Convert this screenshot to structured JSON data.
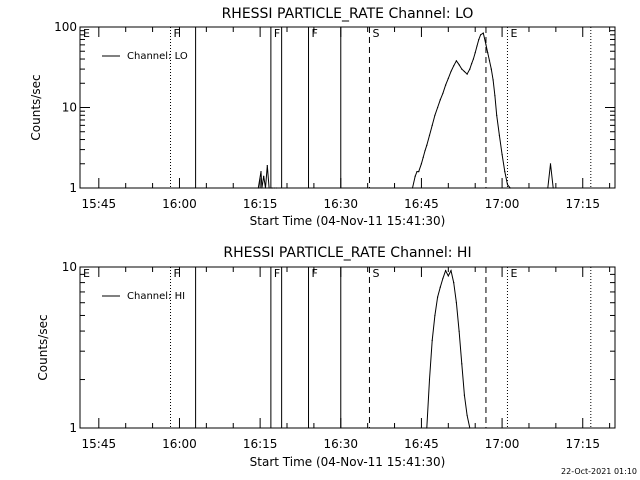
{
  "timestamp": "22-Oct-2021 01:10",
  "chart_data": [
    {
      "type": "line",
      "title": "RHESSI PARTICLE_RATE Channel: LO",
      "xlabel": "Start Time (04-Nov-11 15:41:30)",
      "ylabel": "Counts/sec",
      "yscale": "log",
      "ylim": [
        1,
        100
      ],
      "yticks": [
        {
          "value": 1,
          "label": "1"
        },
        {
          "value": 10,
          "label": "10"
        },
        {
          "value": 100,
          "label": "100"
        }
      ],
      "xlim": [
        "15:41:30",
        "17:21:00"
      ],
      "xticks": [
        "15:45",
        "16:00",
        "16:15",
        "16:30",
        "16:45",
        "17:00",
        "17:15"
      ],
      "legend": {
        "label": "Channel: LO",
        "placement": "top-left"
      },
      "grid": false,
      "series": [
        {
          "name": "Channel: LO",
          "x": [
            "16:14:40",
            "16:15:10",
            "16:15:20",
            "16:15:40",
            "16:16:00",
            "16:16:20",
            "16:16:40",
            "16:17:00",
            "16:17:10",
            "16:17:20",
            "16:17:40",
            "16:18:00",
            "16:43:20",
            "16:43:50",
            "16:44:10",
            "16:44:30",
            "16:45:00",
            "16:45:20",
            "16:45:40",
            "16:46:00",
            "16:46:30",
            "16:47:00",
            "16:47:30",
            "16:48:00",
            "16:48:30",
            "16:49:00",
            "16:49:30",
            "16:50:00",
            "16:50:30",
            "16:51:00",
            "16:51:30",
            "16:52:00",
            "16:52:30",
            "16:53:00",
            "16:53:30",
            "16:54:00",
            "16:54:20",
            "16:54:40",
            "16:55:00",
            "16:55:20",
            "16:55:40",
            "16:56:00",
            "16:56:30",
            "16:57:00",
            "16:57:20",
            "16:57:40",
            "16:58:00",
            "16:58:20",
            "16:58:40",
            "16:59:00",
            "16:59:30",
            "17:00:00",
            "17:00:30",
            "17:01:00",
            "17:01:30",
            "17:08:30",
            "17:09:00",
            "17:09:30"
          ],
          "values": [
            1,
            1.6,
            1,
            1.4,
            1,
            1.9,
            1,
            1,
            1,
            1,
            1,
            1,
            1,
            1.4,
            1.6,
            1.6,
            2,
            2.4,
            2.9,
            3.4,
            4.5,
            6,
            8,
            10,
            12.5,
            15,
            19,
            23,
            28,
            33,
            38,
            34,
            30,
            28,
            26,
            30,
            35,
            40,
            48,
            58,
            70,
            80,
            84,
            60,
            48,
            38,
            30,
            22,
            14,
            8,
            4.5,
            2.6,
            1.6,
            1.1,
            1,
            1,
            2,
            1
          ]
        }
      ],
      "markers": [
        {
          "time": "15:41:30",
          "style": "none",
          "label": "E"
        },
        {
          "time": "15:58:20",
          "style": "dotted",
          "label": "F"
        },
        {
          "time": "16:03:00",
          "style": "solid",
          "label": ""
        },
        {
          "time": "16:17:00",
          "style": "solid",
          "label": "F"
        },
        {
          "time": "16:19:00",
          "style": "solid",
          "label": ""
        },
        {
          "time": "16:24:00",
          "style": "solid",
          "label": "F"
        },
        {
          "time": "16:30:00",
          "style": "solid",
          "label": ""
        },
        {
          "time": "16:35:20",
          "style": "dashed",
          "label": "S"
        },
        {
          "time": "16:57:00",
          "style": "dashed",
          "label": ""
        },
        {
          "time": "17:01:00",
          "style": "dotted",
          "label": "E"
        },
        {
          "time": "17:16:30",
          "style": "dotted",
          "label": ""
        }
      ]
    },
    {
      "type": "line",
      "title": "RHESSI PARTICLE_RATE Channel: HI",
      "xlabel": "Start Time (04-Nov-11 15:41:30)",
      "ylabel": "Counts/sec",
      "yscale": "log",
      "ylim": [
        1,
        10
      ],
      "yticks": [
        {
          "value": 1,
          "label": "1"
        },
        {
          "value": 10,
          "label": "10"
        }
      ],
      "xlim": [
        "15:41:30",
        "17:21:00"
      ],
      "xticks": [
        "15:45",
        "16:00",
        "16:15",
        "16:30",
        "16:45",
        "17:00",
        "17:15"
      ],
      "legend": {
        "label": "Channel: HI",
        "placement": "top-left"
      },
      "grid": false,
      "series": [
        {
          "name": "Channel: HI",
          "x": [
            "16:46:00",
            "16:46:30",
            "16:47:00",
            "16:47:30",
            "16:48:00",
            "16:48:30",
            "16:49:00",
            "16:49:30",
            "16:50:00",
            "16:50:30",
            "16:51:00",
            "16:51:30",
            "16:52:00",
            "16:52:30",
            "16:53:00",
            "16:53:30",
            "16:54:00"
          ],
          "values": [
            1,
            2,
            3.5,
            5,
            6.5,
            7.5,
            8.5,
            9.5,
            8.8,
            9.5,
            8,
            6,
            4,
            2.5,
            1.6,
            1.2,
            1
          ]
        }
      ],
      "markers": [
        {
          "time": "15:41:30",
          "style": "none",
          "label": "E"
        },
        {
          "time": "15:58:20",
          "style": "dotted",
          "label": "F"
        },
        {
          "time": "16:03:00",
          "style": "solid",
          "label": ""
        },
        {
          "time": "16:17:00",
          "style": "solid",
          "label": "F"
        },
        {
          "time": "16:19:00",
          "style": "solid",
          "label": ""
        },
        {
          "time": "16:24:00",
          "style": "solid",
          "label": "F"
        },
        {
          "time": "16:30:00",
          "style": "solid",
          "label": ""
        },
        {
          "time": "16:35:20",
          "style": "dashed",
          "label": "S"
        },
        {
          "time": "16:57:00",
          "style": "dashed",
          "label": ""
        },
        {
          "time": "17:01:00",
          "style": "dotted",
          "label": "E"
        },
        {
          "time": "17:16:30",
          "style": "dotted",
          "label": ""
        }
      ]
    }
  ]
}
